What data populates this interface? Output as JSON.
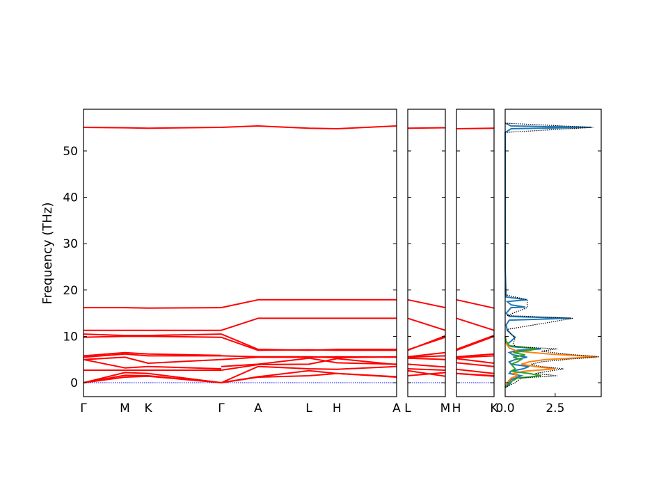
{
  "chart_data": {
    "type": "line",
    "title": "",
    "ylabel": "Frequency (THz)",
    "ylim": [
      -3,
      59
    ],
    "y_ticks": [
      0,
      10,
      20,
      30,
      40,
      50
    ],
    "band_color": "#ff0000",
    "zero_line_color": "#0000ff",
    "band_panels": [
      {
        "segments": [
          {
            "path": [
              "Γ",
              "M",
              "K",
              "Γ"
            ],
            "x": [
              0,
              0.3,
              0.47,
              1.0
            ],
            "bands": [
              [
                0,
                1.2,
                1.4,
                0
              ],
              [
                0,
                1.6,
                1.5,
                0
              ],
              [
                0,
                2.2,
                2.0,
                0
              ],
              [
                2.7,
                2.7,
                2.7,
                2.7
              ],
              [
                5.0,
                3.2,
                3.5,
                3.0
              ],
              [
                5.0,
                5.5,
                4.2,
                5.0
              ],
              [
                5.5,
                6.2,
                5.8,
                5.8
              ],
              [
                5.8,
                6.5,
                6.2,
                5.9
              ],
              [
                9.8,
                10.0,
                10.0,
                9.8
              ],
              [
                10.5,
                10.2,
                10.2,
                10.5
              ],
              [
                11.3,
                11.3,
                11.3,
                11.3
              ],
              [
                16.2,
                16.2,
                16.1,
                16.2
              ],
              [
                55.1,
                55.0,
                54.9,
                55.1
              ]
            ]
          },
          {
            "path": [
              "Γ",
              "A",
              "L",
              "H",
              "A"
            ],
            "x": [
              0,
              0.21,
              0.5,
              0.66,
              1.0
            ],
            "bands": [
              [
                0,
                1.2,
                1.5,
                2.0,
                1.2
              ],
              [
                0,
                1.3,
                2.6,
                2.0,
                1.3
              ],
              [
                0,
                3.5,
                3.0,
                2.9,
                3.5
              ],
              [
                2.7,
                3.9,
                4.0,
                5.2,
                3.9
              ],
              [
                3.5,
                4.0,
                5.3,
                4.3,
                4.0
              ],
              [
                5.0,
                5.5,
                5.5,
                5.6,
                5.5
              ],
              [
                5.8,
                5.6,
                5.6,
                5.4,
                5.6
              ],
              [
                9.8,
                7.0,
                7.1,
                7.0,
                7.0
              ],
              [
                10.5,
                7.2,
                7.0,
                7.2,
                7.2
              ],
              [
                11.3,
                13.9,
                13.9,
                13.9,
                13.9
              ],
              [
                16.2,
                17.9,
                17.9,
                17.9,
                17.9
              ],
              [
                55.1,
                55.4,
                54.9,
                54.8,
                55.4
              ]
            ]
          }
        ]
      },
      {
        "segments": [
          {
            "path": [
              "L",
              "M"
            ],
            "x": [
              0,
              1.0
            ],
            "bands": [
              [
                1.5,
                2.2
              ],
              [
                2.6,
                1.4
              ],
              [
                3.0,
                2.7
              ],
              [
                4.0,
                3.4
              ],
              [
                5.3,
                5.0
              ],
              [
                5.5,
                5.8
              ],
              [
                5.6,
                6.5
              ],
              [
                7.1,
                9.8
              ],
              [
                7.0,
                10.1
              ],
              [
                13.9,
                11.3
              ],
              [
                17.9,
                16.2
              ],
              [
                54.9,
                55.0
              ]
            ]
          }
        ]
      },
      {
        "segments": [
          {
            "path": [
              "H",
              "K"
            ],
            "x": [
              0,
              1.0
            ],
            "bands": [
              [
                2.0,
                1.4
              ],
              [
                2.0,
                1.5
              ],
              [
                2.9,
                2.0
              ],
              [
                4.3,
                3.5
              ],
              [
                5.2,
                4.2
              ],
              [
                5.4,
                5.8
              ],
              [
                5.6,
                6.2
              ],
              [
                7.0,
                10.0
              ],
              [
                7.2,
                10.2
              ],
              [
                13.9,
                11.3
              ],
              [
                17.9,
                16.1
              ],
              [
                54.8,
                54.9
              ]
            ]
          }
        ]
      }
    ],
    "x_tick_labels": {
      "panel_1": [
        "Γ",
        "M",
        "K",
        "Γ",
        "A",
        "L",
        "H",
        "A"
      ],
      "panel_2": [
        "L",
        "M"
      ],
      "panel_3": [
        "H",
        "K"
      ]
    },
    "dos_panel": {
      "xlim": [
        0,
        4.8
      ],
      "x_ticks": [
        0.0,
        2.5
      ],
      "x_tick_labels": [
        "0.0",
        "2.5"
      ],
      "series_colors": [
        "#1f77b4",
        "#ff7f0e",
        "#2ca02c",
        "#000000"
      ],
      "series": [
        {
          "points": [
            [
              0.05,
              -1
            ],
            [
              0.3,
              0
            ],
            [
              0.2,
              0.5
            ],
            [
              0.5,
              1
            ],
            [
              0.8,
              1.5
            ],
            [
              0.2,
              2
            ],
            [
              0.3,
              2.5
            ],
            [
              0.9,
              3
            ],
            [
              1.2,
              3.5
            ],
            [
              0.3,
              4
            ],
            [
              0.2,
              4.5
            ],
            [
              0.5,
              5
            ],
            [
              1.1,
              5.5
            ],
            [
              0.4,
              6
            ],
            [
              0.2,
              6.5
            ],
            [
              0.6,
              7
            ],
            [
              1.8,
              7.3
            ],
            [
              0.3,
              7.8
            ],
            [
              0.1,
              8.3
            ],
            [
              0.3,
              9
            ],
            [
              0.5,
              9.8
            ],
            [
              0.3,
              10.5
            ],
            [
              0.1,
              11.3
            ],
            [
              0.05,
              12.5
            ],
            [
              0.2,
              13.5
            ],
            [
              3.3,
              13.9
            ],
            [
              0.2,
              14.3
            ],
            [
              0.05,
              15
            ],
            [
              0.3,
              16.2
            ],
            [
              1.0,
              16.3
            ],
            [
              0.3,
              16.8
            ],
            [
              0.1,
              17.5
            ],
            [
              1.1,
              17.9
            ],
            [
              0.05,
              18.5
            ],
            [
              0,
              25
            ],
            [
              0,
              54
            ],
            [
              0.3,
              54.8
            ],
            [
              4.3,
              55.1
            ],
            [
              0.3,
              55.4
            ],
            [
              0,
              56
            ]
          ]
        },
        {
          "points": [
            [
              0,
              -1
            ],
            [
              0.1,
              0
            ],
            [
              0.3,
              1
            ],
            [
              0.6,
              1.5
            ],
            [
              0.4,
              2
            ],
            [
              1.0,
              2.5
            ],
            [
              2.5,
              3
            ],
            [
              1.5,
              3.5
            ],
            [
              0.8,
              4
            ],
            [
              1.2,
              4.5
            ],
            [
              2.0,
              5
            ],
            [
              4.6,
              5.6
            ],
            [
              2.2,
              6.2
            ],
            [
              0.6,
              6.8
            ],
            [
              0.2,
              7.5
            ],
            [
              0.05,
              8.5
            ],
            [
              0,
              10
            ]
          ]
        },
        {
          "points": [
            [
              0,
              -1
            ],
            [
              0.2,
              0
            ],
            [
              0.4,
              0.5
            ],
            [
              0.6,
              1
            ],
            [
              1.8,
              1.5
            ],
            [
              1.2,
              2
            ],
            [
              0.3,
              2.5
            ],
            [
              0.5,
              3
            ],
            [
              0.4,
              3.5
            ],
            [
              0.3,
              4
            ],
            [
              0.6,
              4.5
            ],
            [
              0.8,
              5
            ],
            [
              0.4,
              5.5
            ],
            [
              1.0,
              6
            ],
            [
              0.4,
              6.5
            ],
            [
              1.2,
              7
            ],
            [
              1.6,
              7.3
            ],
            [
              0.2,
              8
            ],
            [
              0.05,
              9
            ],
            [
              0,
              10
            ]
          ]
        },
        {
          "points": [
            [
              0,
              -1
            ],
            [
              0.5,
              0
            ],
            [
              0.8,
              1
            ],
            [
              2.6,
              1.5
            ],
            [
              1.5,
              2
            ],
            [
              2.2,
              2.5
            ],
            [
              2.9,
              3
            ],
            [
              1.8,
              3.5
            ],
            [
              1.3,
              4
            ],
            [
              1.8,
              4.5
            ],
            [
              3.0,
              5
            ],
            [
              4.7,
              5.6
            ],
            [
              3.0,
              6.2
            ],
            [
              1.8,
              6.8
            ],
            [
              2.6,
              7.3
            ],
            [
              0.5,
              7.8
            ],
            [
              0.4,
              8.5
            ],
            [
              0.5,
              9.5
            ],
            [
              0.3,
              10.5
            ],
            [
              0.1,
              11.5
            ],
            [
              3.4,
              13.9
            ],
            [
              0.1,
              14.5
            ],
            [
              1.1,
              16.2
            ],
            [
              1.1,
              17.9
            ],
            [
              0,
              19
            ],
            [
              0,
              54
            ],
            [
              4.4,
              55.1
            ],
            [
              0,
              56
            ]
          ]
        }
      ]
    }
  }
}
